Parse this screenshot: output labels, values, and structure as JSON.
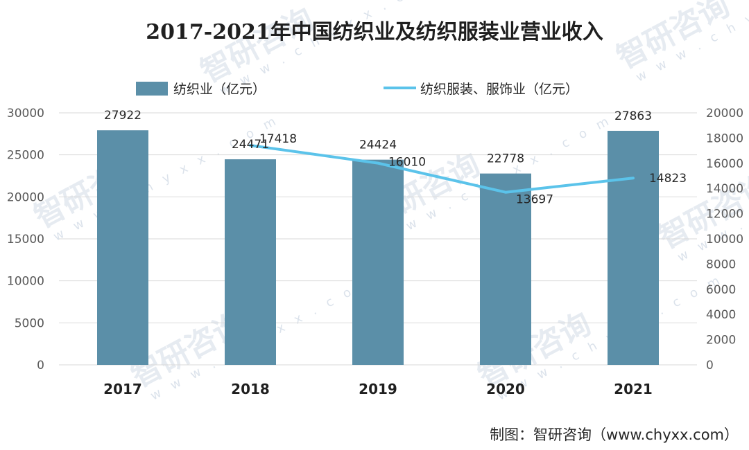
{
  "chart_data": {
    "type": "bar",
    "title": "2017-2021年中国纺织业及纺织服装业营业收入",
    "categories": [
      "2017",
      "2018",
      "2019",
      "2020",
      "2021"
    ],
    "series": [
      {
        "name": "纺织业（亿元）",
        "type": "bar",
        "axis": "left",
        "values": [
          27922,
          24471,
          24424,
          22778,
          27863
        ],
        "labels": [
          "27922",
          "24471",
          "24424",
          "22778",
          "27863"
        ]
      },
      {
        "name": "纺织服装、服饰业（亿元）",
        "type": "line",
        "axis": "right",
        "values": [
          null,
          17418,
          16010,
          13697,
          14823
        ],
        "labels": [
          "",
          "17418",
          "16010",
          "13697",
          "14823"
        ]
      }
    ],
    "y_left": {
      "min": 0,
      "max": 30000,
      "ticks": [
        "0",
        "5000",
        "10000",
        "15000",
        "20000",
        "25000",
        "30000"
      ]
    },
    "y_right": {
      "min": 0,
      "max": 20000,
      "ticks": [
        "0",
        "2000",
        "4000",
        "6000",
        "8000",
        "10000",
        "12000",
        "14000",
        "16000",
        "18000",
        "20000"
      ]
    },
    "grid": true,
    "legend_position": "top",
    "colors": {
      "bar": "#5b8fa8",
      "line": "#5bc3ea",
      "grid": "#d9d9d9"
    }
  },
  "credit": "制图：智研咨询（www.chyxx.com）",
  "watermark": {
    "text": "智研咨询",
    "url": "w w w . c h y x x . c o m"
  }
}
